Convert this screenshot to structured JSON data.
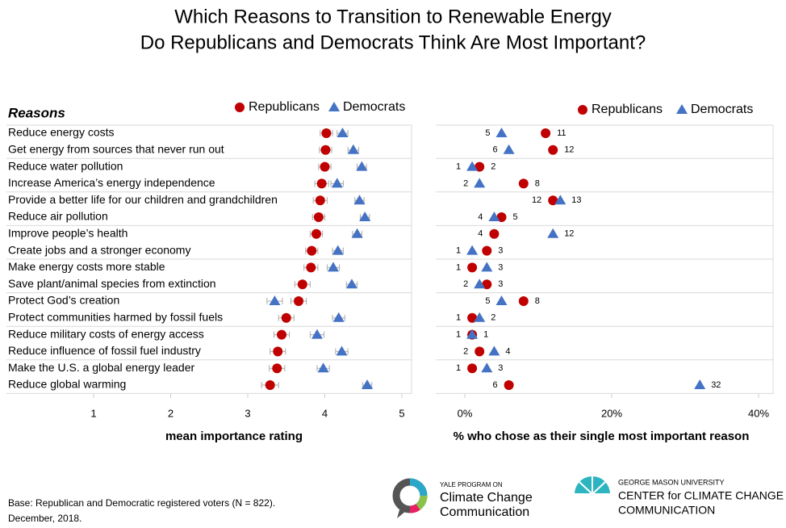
{
  "title": [
    "Which Reasons to Transition to Renewable Energy",
    "Do Republicans and Democrats Think Are Most Important?"
  ],
  "chart_data": [
    {
      "type": "dot",
      "row_header": "Reasons",
      "categories": [
        "Reduce energy costs",
        "Get energy from sources that never run out",
        "Reduce water pollution",
        "Increase America’s energy independence",
        "Provide a better life for our children and grandchildren",
        "Reduce air pollution",
        "Improve people’s health",
        "Create jobs and a stronger economy",
        "Make energy costs more stable",
        "Save plant/animal species from extinction",
        "Protect God’s creation",
        "Protect communities harmed by fossil fuels",
        "Reduce military costs of energy access",
        "Reduce influence of fossil fuel industry",
        "Make the U.S. a global energy leader",
        "Reduce global warming"
      ],
      "series": [
        {
          "name": "Republicans",
          "color": "#c00000",
          "marker": "circle",
          "values": [
            4.02,
            4.01,
            4.0,
            3.96,
            3.94,
            3.92,
            3.89,
            3.83,
            3.82,
            3.71,
            3.66,
            3.5,
            3.44,
            3.39,
            3.38,
            3.29
          ],
          "errors": [
            0.08,
            0.08,
            0.08,
            0.09,
            0.09,
            0.08,
            0.08,
            0.08,
            0.09,
            0.1,
            0.1,
            0.1,
            0.1,
            0.1,
            0.1,
            0.11
          ]
        },
        {
          "name": "Democrats",
          "color": "#4472c4",
          "marker": "triangle",
          "values": [
            4.23,
            4.37,
            4.48,
            4.16,
            4.45,
            4.52,
            4.42,
            4.17,
            4.11,
            4.35,
            3.35,
            4.18,
            3.9,
            4.22,
            3.98,
            4.55
          ],
          "errors": [
            0.07,
            0.07,
            0.06,
            0.08,
            0.06,
            0.06,
            0.06,
            0.07,
            0.08,
            0.07,
            0.1,
            0.08,
            0.09,
            0.08,
            0.08,
            0.06
          ]
        }
      ],
      "xlabel": "mean importance rating",
      "xlim": [
        1,
        5
      ],
      "xticks": [
        1,
        2,
        3,
        4,
        5
      ]
    },
    {
      "type": "dot",
      "series": [
        {
          "name": "Republicans",
          "color": "#c00000",
          "marker": "circle",
          "values": [
            11,
            12,
            2,
            8,
            12,
            5,
            4,
            3,
            1,
            3,
            8,
            1,
            1,
            2,
            1,
            6
          ]
        },
        {
          "name": "Democrats",
          "color": "#4472c4",
          "marker": "triangle",
          "values": [
            5,
            6,
            1,
            2,
            13,
            4,
            12,
            1,
            3,
            2,
            5,
            2,
            1,
            4,
            3,
            32
          ]
        }
      ],
      "xlabel": "% who chose as their single most important reason",
      "xlim": [
        0,
        40
      ],
      "xticks": [
        {
          "value": 0,
          "label": "0%"
        },
        {
          "value": 20,
          "label": "20%"
        },
        {
          "value": 40,
          "label": "40%"
        }
      ]
    }
  ],
  "footnote": [
    "Base: Republican and Democratic registered voters (N = 822).",
    "December, 2018."
  ],
  "logos": {
    "yale": [
      "YALE PROGRAM ON",
      "Climate Change",
      "Communication"
    ],
    "gmu": [
      "GEORGE MASON UNIVERSITY",
      "CENTER for CLIMATE CHANGE",
      "COMMUNICATION"
    ]
  }
}
